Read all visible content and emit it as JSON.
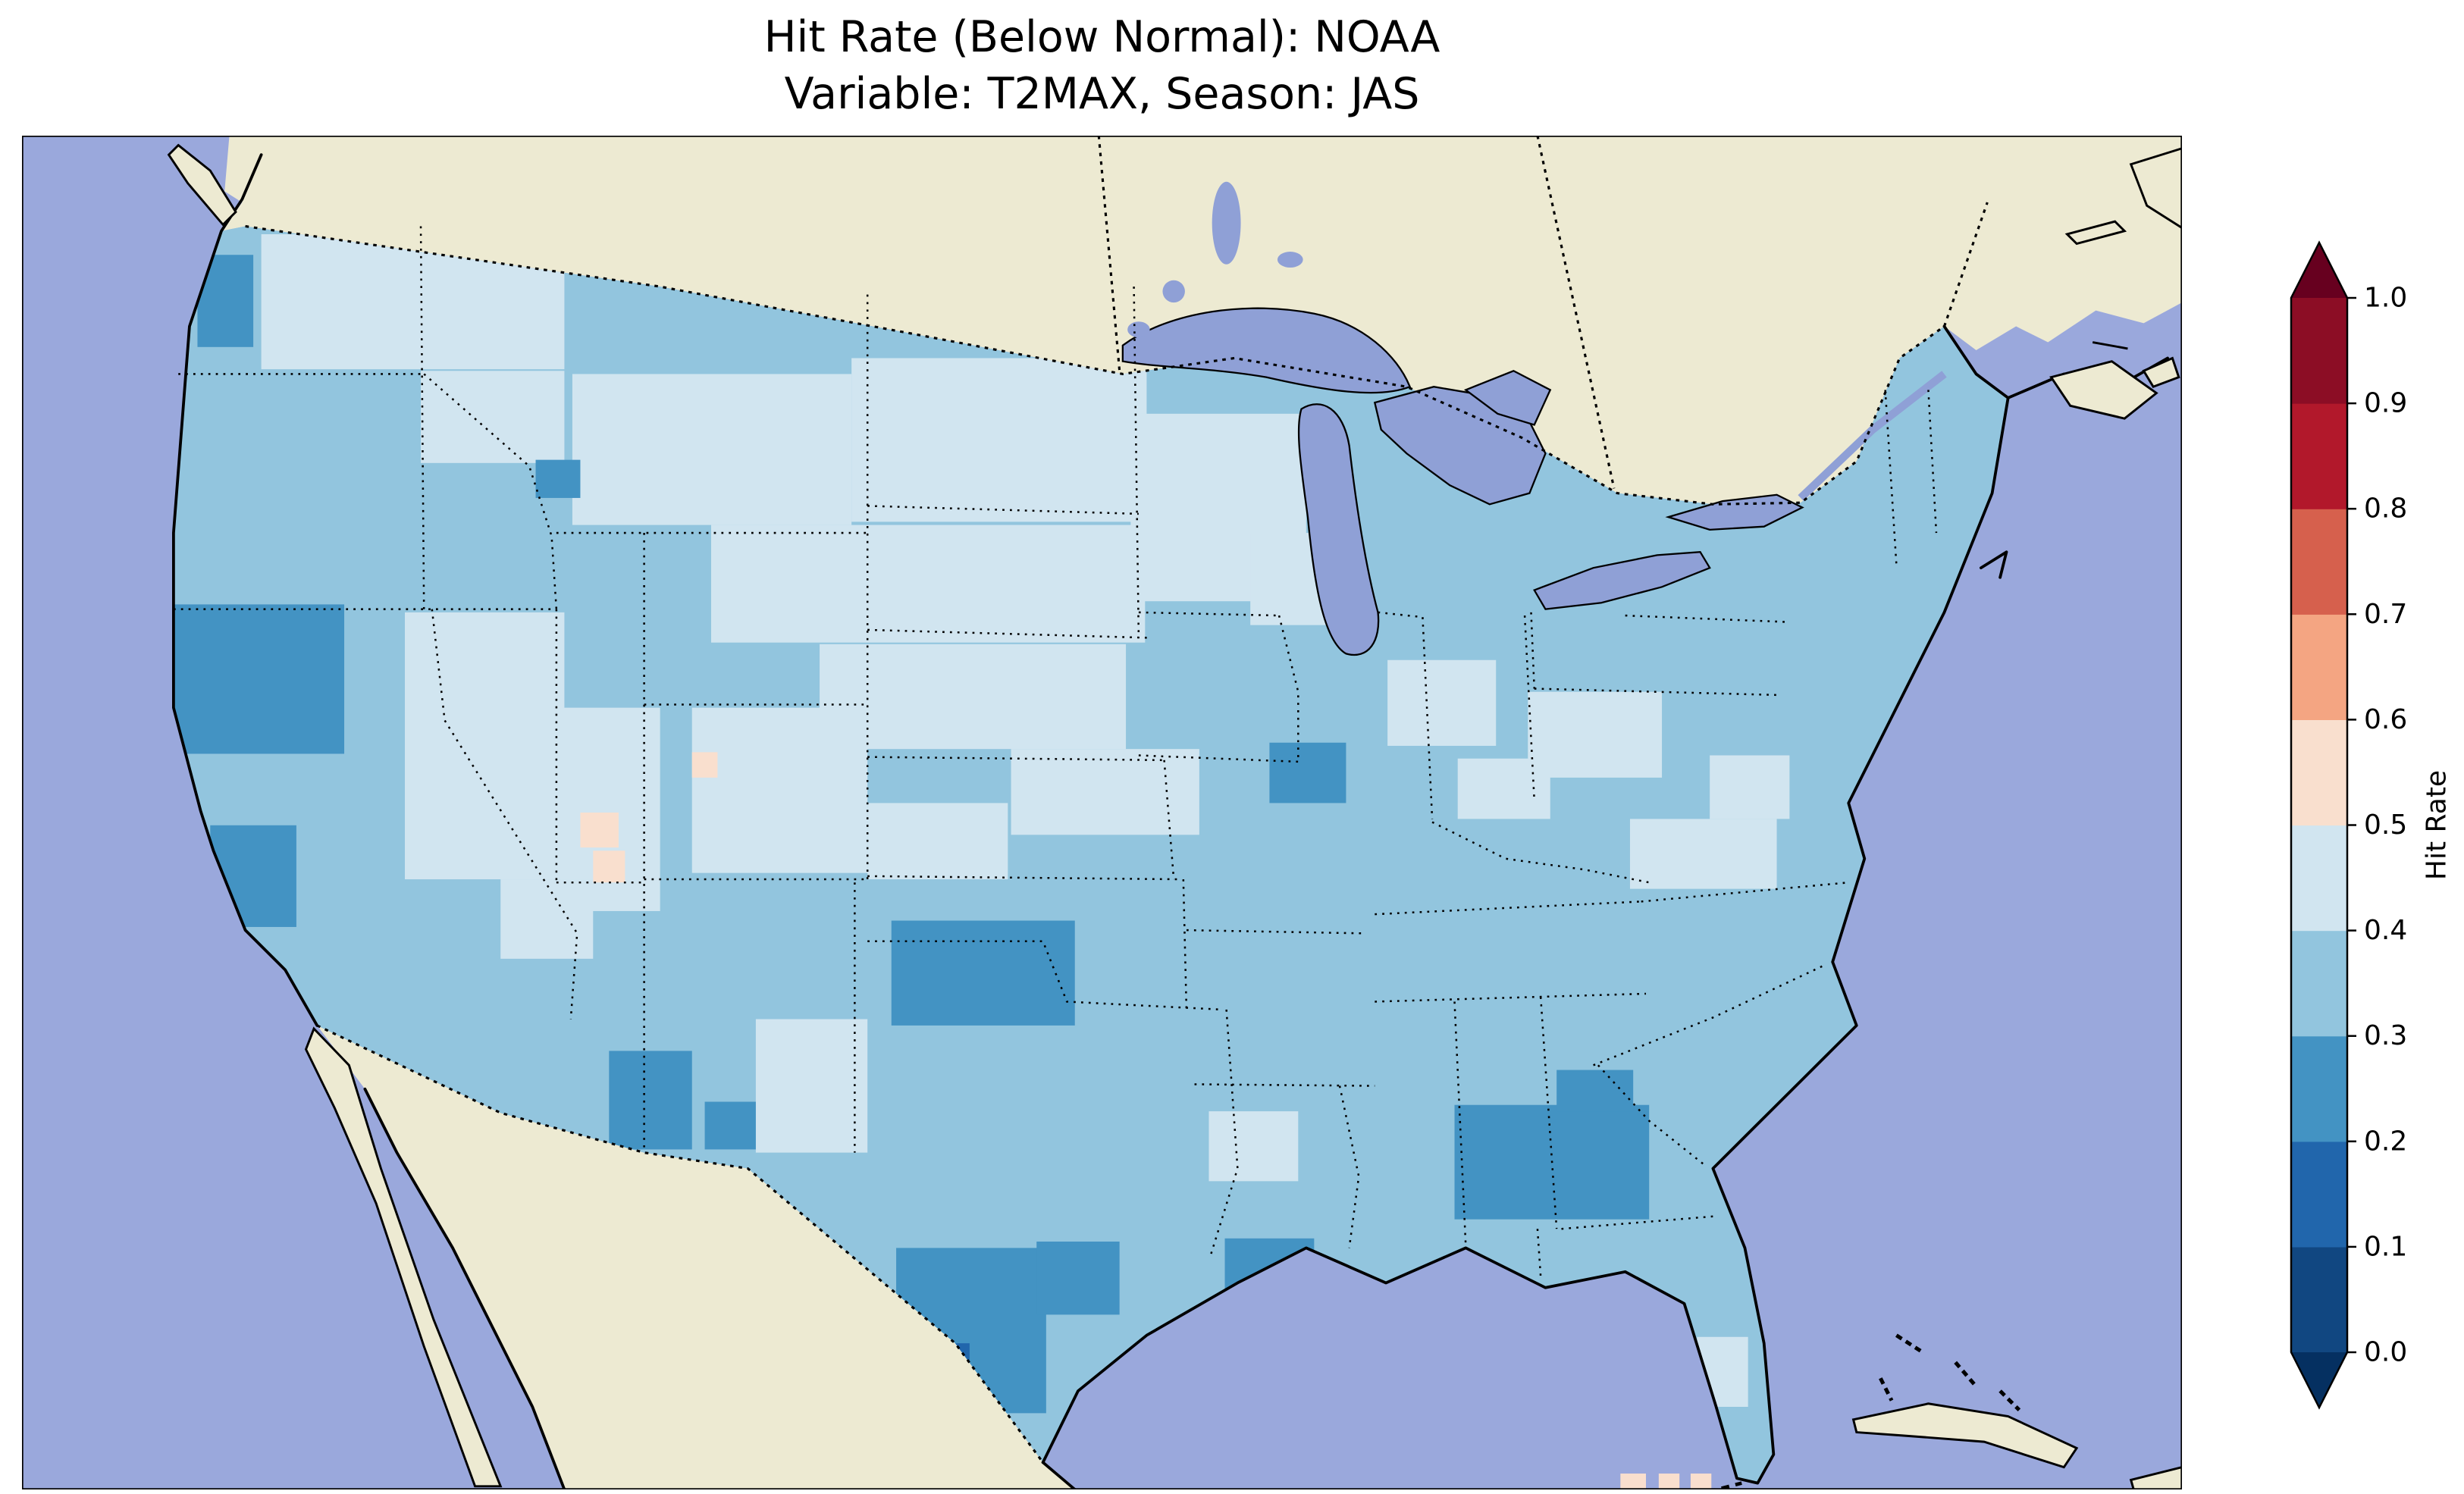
{
  "figure": {
    "title_line1": "Hit Rate (Below Normal): NOAA",
    "title_line2": "Variable: T2MAX, Season: JAS"
  },
  "chart_data": {
    "type": "heatmap",
    "title": "Hit Rate (Below Normal): NOAA",
    "subtitle": "Variable: T2MAX, Season: JAS",
    "dataset": "NOAA",
    "variable": "T2MAX",
    "season": "JAS",
    "metric": "Hit Rate (Below Normal)",
    "region": "Contiguous United States",
    "colorbar": {
      "label": "Hit Rate",
      "orientation": "vertical",
      "extend": "both",
      "domain": [
        0.0,
        1.0
      ],
      "ticks": [
        "0.0",
        "0.1",
        "0.2",
        "0.3",
        "0.4",
        "0.5",
        "0.6",
        "0.7",
        "0.8",
        "0.9",
        "1.0"
      ],
      "under_color": "#053061",
      "over_color": "#67001f",
      "bins": [
        {
          "range": [
            0.0,
            0.1
          ],
          "color": "#114781"
        },
        {
          "range": [
            0.1,
            0.2
          ],
          "color": "#2166ac"
        },
        {
          "range": [
            0.2,
            0.3
          ],
          "color": "#4393c3"
        },
        {
          "range": [
            0.3,
            0.4
          ],
          "color": "#92c5de"
        },
        {
          "range": [
            0.4,
            0.5
          ],
          "color": "#d1e5f0"
        },
        {
          "range": [
            0.5,
            0.6
          ],
          "color": "#f9dfce"
        },
        {
          "range": [
            0.6,
            0.7
          ],
          "color": "#f4a582"
        },
        {
          "range": [
            0.7,
            0.8
          ],
          "color": "#d6604d"
        },
        {
          "range": [
            0.8,
            0.9
          ],
          "color": "#b2182b"
        },
        {
          "range": [
            0.9,
            1.0
          ],
          "color": "#8c0d25"
        }
      ]
    },
    "map": {
      "ocean_color": "#9aa8dc",
      "lake_color": "#8fa0d6",
      "land_color": "#edead2",
      "base_value": 0.35,
      "regions": [
        {
          "name": "pacific-northwest-light",
          "value": 0.45,
          "cells": [
            [
              150,
              62,
              190,
              85
            ],
            [
              250,
              148,
              90,
              58
            ]
          ]
        },
        {
          "name": "washington-coast-dark",
          "value": 0.25,
          "cells": [
            [
              110,
              75,
              35,
              58
            ]
          ]
        },
        {
          "name": "northern-plains-light",
          "value": 0.45,
          "cells": [
            [
              345,
              150,
              175,
              95
            ],
            [
              520,
              140,
              185,
              103
            ],
            [
              432,
              245,
              272,
              74
            ],
            [
              500,
              320,
              192,
              66
            ],
            [
              620,
              386,
              118,
              54
            ]
          ]
        },
        {
          "name": "great-basin-light",
          "value": 0.45,
          "cells": [
            [
              240,
              300,
              100,
              168
            ],
            [
              338,
              360,
              62,
              128
            ],
            [
              300,
              468,
              58,
              50
            ]
          ]
        },
        {
          "name": "colorado-light",
          "value": 0.45,
          "cells": [
            [
              420,
              360,
              110,
              104
            ],
            [
              530,
              420,
              88,
              48
            ]
          ]
        },
        {
          "name": "upper-midwest-light",
          "value": 0.45,
          "cells": [
            [
              695,
              175,
              110,
              118
            ],
            [
              770,
              250,
              68,
              58
            ]
          ]
        },
        {
          "name": "ohio-valley-light",
          "value": 0.45,
          "cells": [
            [
              856,
              330,
              68,
              54
            ],
            [
              944,
              350,
              84,
              54
            ],
            [
              900,
              392,
              58,
              38
            ]
          ]
        },
        {
          "name": "mid-atlantic-light",
          "value": 0.45,
          "cells": [
            [
              1008,
              430,
              92,
              44
            ],
            [
              1058,
              390,
              50,
              40
            ]
          ]
        },
        {
          "name": "west-texas-light",
          "value": 0.45,
          "cells": [
            [
              460,
              556,
              70,
              84
            ]
          ]
        },
        {
          "name": "lower-mississippi-light",
          "value": 0.45,
          "cells": [
            [
              744,
              614,
              56,
              44
            ]
          ]
        },
        {
          "name": "florida-light",
          "value": 0.45,
          "cells": [
            [
              1050,
              756,
              32,
              44
            ]
          ]
        },
        {
          "name": "northern-california-dark",
          "value": 0.25,
          "cells": [
            [
              88,
              295,
              114,
              94
            ],
            [
              118,
              434,
              54,
              64
            ]
          ]
        },
        {
          "name": "montana-dark-cell",
          "value": 0.25,
          "cells": [
            [
              322,
              204,
              28,
              24
            ]
          ]
        },
        {
          "name": "iowa-illinois-dark",
          "value": 0.25,
          "cells": [
            [
              782,
              382,
              48,
              38
            ]
          ]
        },
        {
          "name": "central-oklahoma-dark",
          "value": 0.25,
          "cells": [
            [
              545,
              494,
              115,
              66
            ]
          ]
        },
        {
          "name": "eastern-new-mexico-dark",
          "value": 0.25,
          "cells": [
            [
              368,
              576,
              52,
              62
            ],
            [
              428,
              608,
              32,
              30
            ]
          ]
        },
        {
          "name": "south-texas-dark",
          "value": 0.25,
          "cells": [
            [
              548,
              700,
              94,
              104
            ],
            [
              636,
              696,
              52,
              46
            ]
          ]
        },
        {
          "name": "south-texas-core",
          "value": 0.15,
          "cells": [
            [
              564,
              760,
              30,
              42
            ]
          ]
        },
        {
          "name": "louisiana-coast-dark",
          "value": 0.25,
          "cells": [
            [
              754,
              694,
              56,
              38
            ]
          ]
        },
        {
          "name": "georgia-dark",
          "value": 0.25,
          "cells": [
            [
              898,
              610,
              122,
              72
            ],
            [
              962,
              588,
              48,
              26
            ]
          ]
        },
        {
          "name": "utah-pink-cells",
          "value": 0.55,
          "cells": [
            [
              350,
              426,
              24,
              22
            ],
            [
              358,
              450,
              20,
              20
            ]
          ]
        },
        {
          "name": "colorado-pink-cell",
          "value": 0.55,
          "cells": [
            [
              420,
              388,
              16,
              16
            ]
          ]
        },
        {
          "name": "florida-keys-pink-cells",
          "value": 0.55,
          "unclipped": true,
          "cells": [
            [
              1002,
              842,
              16,
              11
            ],
            [
              1026,
              842,
              13,
              11
            ],
            [
              1046,
              842,
              13,
              11
            ]
          ]
        }
      ]
    }
  }
}
